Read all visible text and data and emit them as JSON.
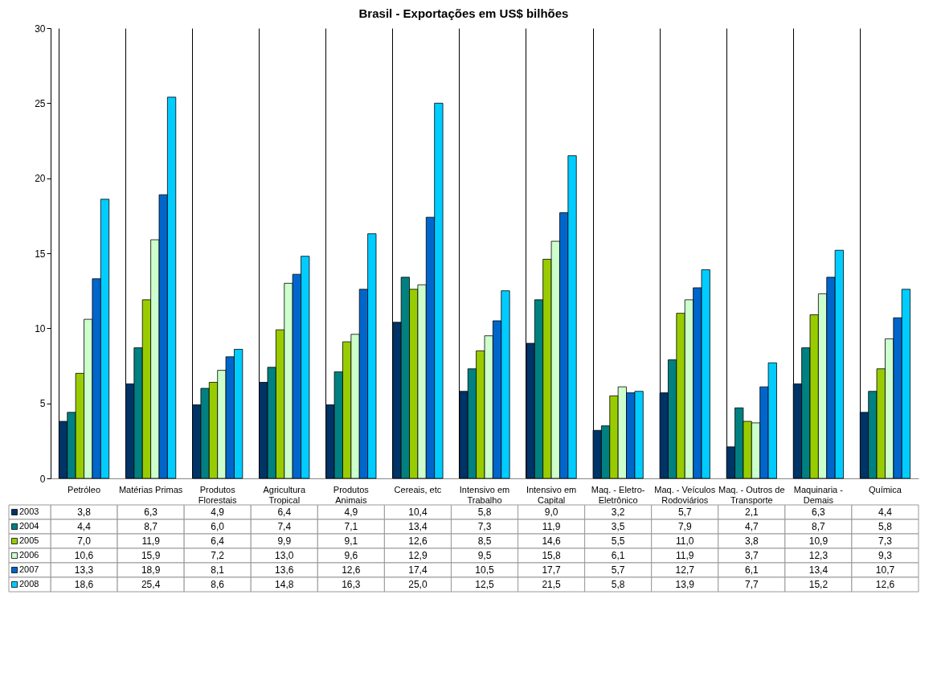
{
  "chart_data": {
    "type": "bar",
    "title": "Brasil - Exportações em US$ bilhões",
    "categories": [
      "Petróleo",
      "Matérias Primas",
      "Produtos\nFlorestais",
      "Agricultura\nTropical",
      "Produtos\nAnimais",
      "Cereais, etc",
      "Intensivo em\nTrabalho",
      "Intensivo em\nCapital",
      "Maq. - Eletro-\nEletrônico",
      "Maq. - Veículos\nRodoviários",
      "Maq. - Outros de\nTransporte",
      "Maquinaria -\nDemais",
      "Química"
    ],
    "series": [
      {
        "name": "2003",
        "color": "#003366",
        "values": [
          3.8,
          6.3,
          4.9,
          6.4,
          4.9,
          10.4,
          5.8,
          9.0,
          3.2,
          5.7,
          2.1,
          6.3,
          4.4
        ],
        "value_labels": [
          "3,8",
          "6,3",
          "4,9",
          "6,4",
          "4,9",
          "10,4",
          "5,8",
          "9,0",
          "3,2",
          "5,7",
          "2,1",
          "6,3",
          "4,4"
        ]
      },
      {
        "name": "2004",
        "color": "#008080",
        "values": [
          4.4,
          8.7,
          6.0,
          7.4,
          7.1,
          13.4,
          7.3,
          11.9,
          3.5,
          7.9,
          4.7,
          8.7,
          5.8
        ],
        "value_labels": [
          "4,4",
          "8,7",
          "6,0",
          "7,4",
          "7,1",
          "13,4",
          "7,3",
          "11,9",
          "3,5",
          "7,9",
          "4,7",
          "8,7",
          "5,8"
        ]
      },
      {
        "name": "2005",
        "color": "#99cc00",
        "values": [
          7.0,
          11.9,
          6.4,
          9.9,
          9.1,
          12.6,
          8.5,
          14.6,
          5.5,
          11.0,
          3.8,
          10.9,
          7.3
        ],
        "value_labels": [
          "7,0",
          "11,9",
          "6,4",
          "9,9",
          "9,1",
          "12,6",
          "8,5",
          "14,6",
          "5,5",
          "11,0",
          "3,8",
          "10,9",
          "7,3"
        ]
      },
      {
        "name": "2006",
        "color": "#ccffcc",
        "values": [
          10.6,
          15.9,
          7.2,
          13.0,
          9.6,
          12.9,
          9.5,
          15.8,
          6.1,
          11.9,
          3.7,
          12.3,
          9.3
        ],
        "value_labels": [
          "10,6",
          "15,9",
          "7,2",
          "13,0",
          "9,6",
          "12,9",
          "9,5",
          "15,8",
          "6,1",
          "11,9",
          "3,7",
          "12,3",
          "9,3"
        ]
      },
      {
        "name": "2007",
        "color": "#0066cc",
        "values": [
          13.3,
          18.9,
          8.1,
          13.6,
          12.6,
          17.4,
          10.5,
          17.7,
          5.7,
          12.7,
          6.1,
          13.4,
          10.7
        ],
        "value_labels": [
          "13,3",
          "18,9",
          "8,1",
          "13,6",
          "12,6",
          "17,4",
          "10,5",
          "17,7",
          "5,7",
          "12,7",
          "6,1",
          "13,4",
          "10,7"
        ]
      },
      {
        "name": "2008",
        "color": "#00ccff",
        "values": [
          18.6,
          25.4,
          8.6,
          14.8,
          16.3,
          25.0,
          12.5,
          21.5,
          5.8,
          13.9,
          7.7,
          15.2,
          12.6
        ],
        "value_labels": [
          "18,6",
          "25,4",
          "8,6",
          "14,8",
          "16,3",
          "25,0",
          "12,5",
          "21,5",
          "5,8",
          "13,9",
          "7,7",
          "15,2",
          "12,6"
        ]
      }
    ],
    "ylim": [
      0,
      30
    ],
    "yticks": [
      0,
      5,
      10,
      15,
      20,
      25,
      30
    ],
    "grid": "x",
    "legend": "bottom left"
  }
}
